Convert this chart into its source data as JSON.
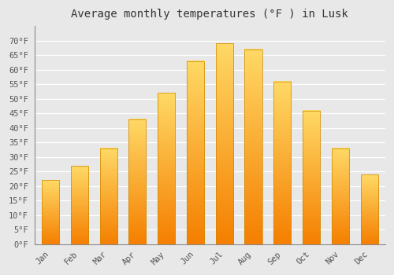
{
  "title": "Average monthly temperatures (°F ) in Lusk",
  "months": [
    "Jan",
    "Feb",
    "Mar",
    "Apr",
    "May",
    "Jun",
    "Jul",
    "Aug",
    "Sep",
    "Oct",
    "Nov",
    "Dec"
  ],
  "values": [
    22,
    27,
    33,
    43,
    52,
    63,
    69,
    67,
    56,
    46,
    33,
    24
  ],
  "bar_color_top": "#FFC200",
  "bar_color_bottom": "#F57F00",
  "bar_color_center": "#FFD966",
  "ylim": [
    0,
    75
  ],
  "yticks": [
    0,
    5,
    10,
    15,
    20,
    25,
    30,
    35,
    40,
    45,
    50,
    55,
    60,
    65,
    70
  ],
  "ytick_labels": [
    "0°F",
    "5°F",
    "10°F",
    "15°F",
    "20°F",
    "25°F",
    "30°F",
    "35°F",
    "40°F",
    "45°F",
    "50°F",
    "55°F",
    "60°F",
    "65°F",
    "70°F"
  ],
  "title_fontsize": 10,
  "tick_fontsize": 7.5,
  "background_color": "#e8e8e8",
  "plot_bg_color": "#e8e8e8",
  "grid_color": "#ffffff",
  "bar_width": 0.6,
  "bar_edge_color": "#cc8800",
  "bar_edge_width": 0.5
}
